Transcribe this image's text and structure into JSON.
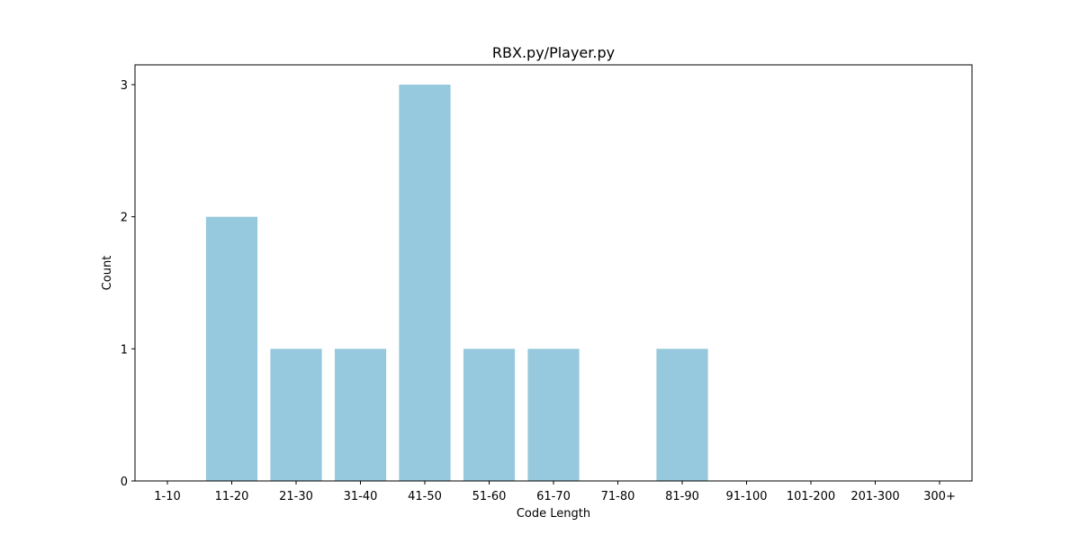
{
  "chart_data": {
    "type": "bar",
    "title": "RBX.py/Player.py",
    "xlabel": "Code Length",
    "ylabel": "Count",
    "categories": [
      "1-10",
      "11-20",
      "21-30",
      "31-40",
      "41-50",
      "51-60",
      "61-70",
      "71-80",
      "81-90",
      "91-100",
      "101-200",
      "201-300",
      "300+"
    ],
    "values": [
      0,
      2,
      1,
      1,
      3,
      1,
      1,
      0,
      1,
      0,
      0,
      0,
      0
    ],
    "yticks": [
      "0",
      "1",
      "2",
      "3"
    ],
    "ylim": [
      0,
      3.15
    ],
    "grid": false,
    "legend": "none",
    "bar_color": "#96c9dd"
  }
}
